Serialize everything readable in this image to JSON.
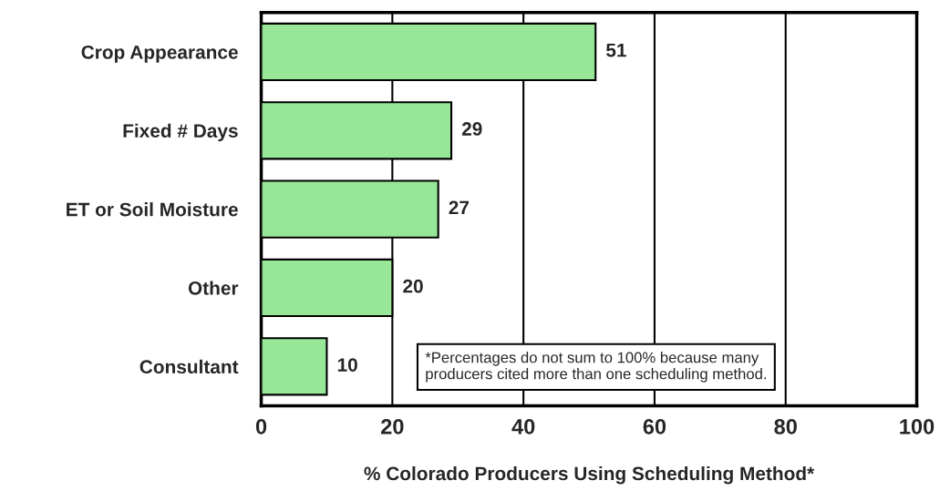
{
  "chart_data": {
    "type": "bar",
    "orientation": "horizontal",
    "categories": [
      "Crop Appearance",
      "Fixed # Days",
      "ET or Soil Moisture",
      "Other",
      "Consultant"
    ],
    "values": [
      51,
      29,
      27,
      20,
      10
    ],
    "color": "#98e698",
    "xlim": [
      0,
      100
    ],
    "xticks": [
      0,
      20,
      40,
      60,
      80,
      100
    ],
    "grid": "x",
    "data_labels": true,
    "xlabel": "% Colorado Producers Using Scheduling Method*",
    "annotations": [
      "*Percentages do not sum to 100% because many\nproducers cited more than one scheduling method."
    ]
  }
}
